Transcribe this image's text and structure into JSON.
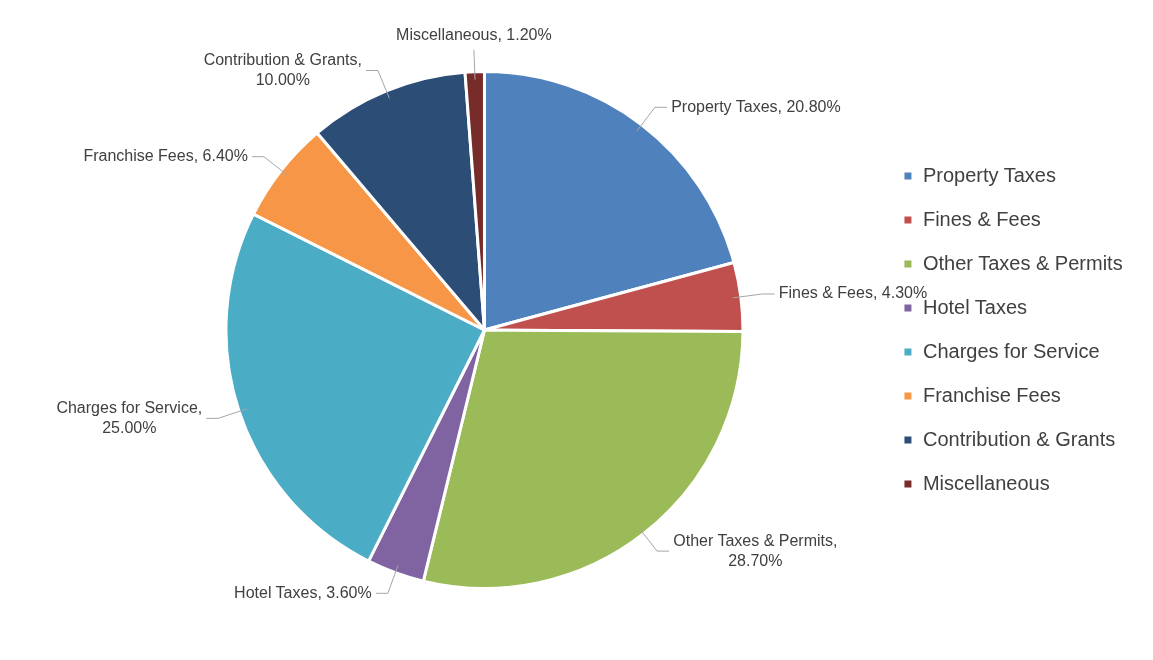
{
  "chart_data": {
    "type": "pie",
    "categories": [
      "Property Taxes",
      "Fines & Fees",
      "Other Taxes & Permits",
      "Hotel Taxes",
      "Charges for Service",
      "Franchise Fees",
      "Contribution & Grants",
      "Miscellaneous"
    ],
    "values": [
      20.8,
      4.3,
      28.7,
      3.6,
      25,
      6.4,
      10,
      1.2
    ],
    "colors": [
      "#4f81bd",
      "#c0504d",
      "#9bbb59",
      "#8064a2",
      "#4bacc6",
      "#f79646",
      "#2c4d75",
      "#772c2a"
    ],
    "value_labels": [
      "Property Taxes, 20.80%",
      "Fines & Fees, 4.30%",
      "Other Taxes & Permits, 28.70%",
      "Hotel Taxes, 3.60%",
      "Charges for Service, 25.00%",
      "Franchise Fees, 6.40%",
      "Contribution & Grants, 10.00%",
      "Miscellaneous, 1.20%"
    ],
    "legend": "right"
  }
}
